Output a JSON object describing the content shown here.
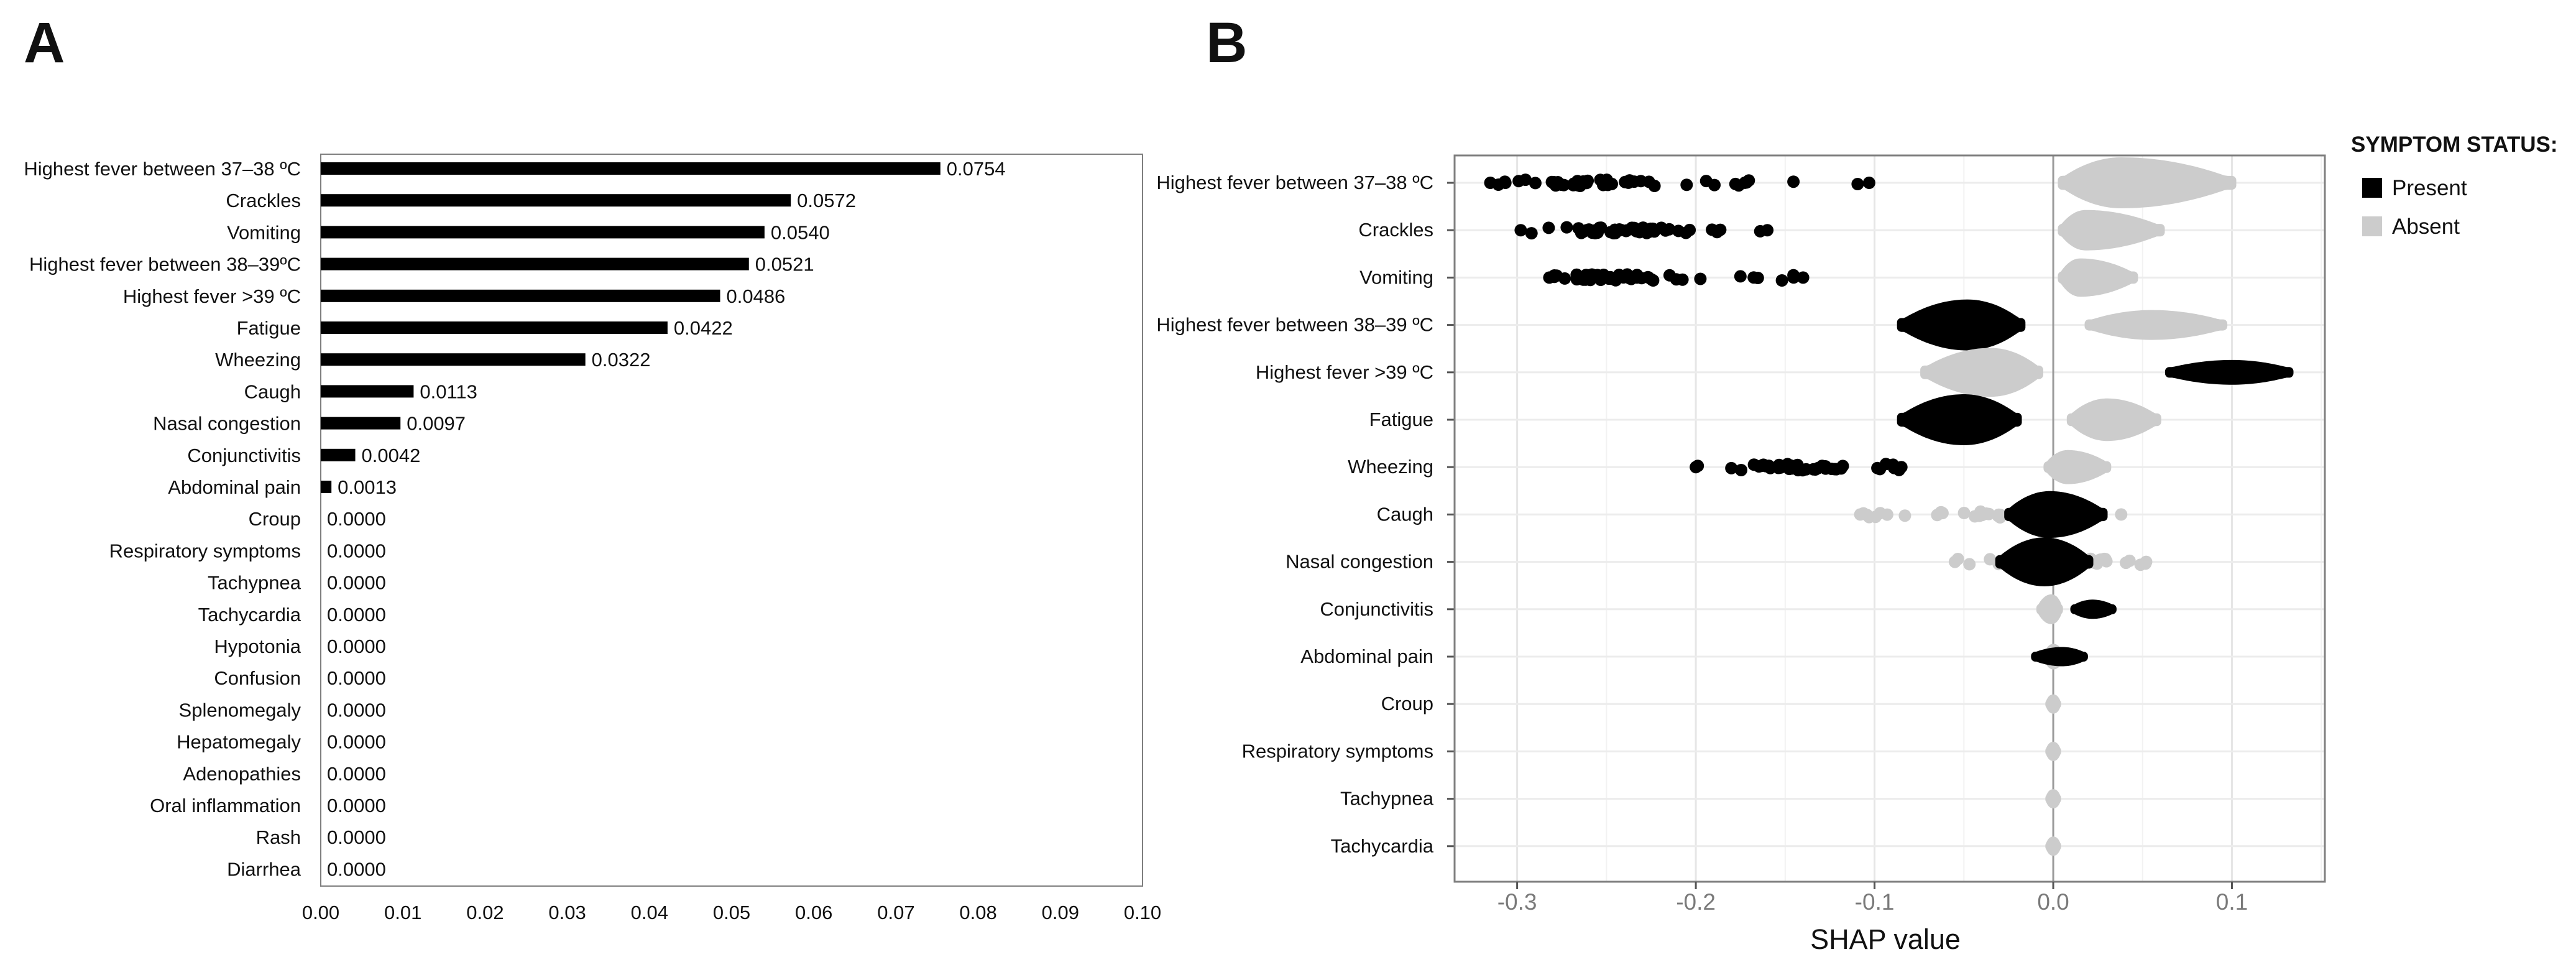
{
  "chart_data": [
    {
      "panel": "A",
      "type": "bar",
      "orientation": "horizontal",
      "categories": [
        "Highest fever between 37–38 ºC",
        "Crackles",
        "Vomiting",
        "Highest fever between 38–39ºC",
        "Highest fever >39 ºC",
        "Fatigue",
        "Wheezing",
        "Caugh",
        "Nasal congestion",
        "Conjunctivitis",
        "Abdominal pain",
        "Croup",
        "Respiratory symptoms",
        "Tachypnea",
        "Tachycardia",
        "Hypotonia",
        "Confusion",
        "Splenomegaly",
        "Hepatomegaly",
        "Adenopathies",
        "Oral inflammation",
        "Rash",
        "Diarrhea"
      ],
      "values": [
        0.0754,
        0.0572,
        0.054,
        0.0521,
        0.0486,
        0.0422,
        0.0322,
        0.0113,
        0.0097,
        0.0042,
        0.0013,
        0,
        0,
        0,
        0,
        0,
        0,
        0,
        0,
        0,
        0,
        0,
        0
      ],
      "value_labels": [
        "0.0754",
        "0.0572",
        "0.0540",
        "0.0521",
        "0.0486",
        "0.0422",
        "0.0322",
        "0.0113",
        "0.0097",
        "0.0042",
        "0.0013",
        "0.0000",
        "0.0000",
        "0.0000",
        "0.0000",
        "0.0000",
        "0.0000",
        "0.0000",
        "0.0000",
        "0.0000",
        "0.0000",
        "0.0000",
        "0.0000"
      ],
      "xlim": [
        0,
        0.1
      ],
      "xticks": [
        0,
        0.01,
        0.02,
        0.03,
        0.04,
        0.05,
        0.06,
        0.07,
        0.08,
        0.09,
        0.1
      ],
      "xtick_labels": [
        "0.00",
        "0.01",
        "0.02",
        "0.03",
        "0.04",
        "0.05",
        "0.06",
        "0.07",
        "0.08",
        "0.09",
        "0.10"
      ],
      "color": "#000000"
    },
    {
      "panel": "B",
      "type": "scatter",
      "subtype": "beeswarm",
      "categories": [
        "Highest fever between 37–38 ºC",
        "Crackles",
        "Vomiting",
        "Highest fever between 38–39 ºC",
        "Highest fever >39 ºC",
        "Fatigue",
        "Wheezing",
        "Caugh",
        "Nasal congestion",
        "Conjunctivitis",
        "Abdominal pain",
        "Croup",
        "Respiratory symptoms",
        "Tachypnea",
        "Tachycardia"
      ],
      "xlabel": "SHAP value",
      "xlim": [
        -0.335,
        0.152
      ],
      "xticks": [
        -0.3,
        -0.2,
        -0.1,
        0.0,
        0.1
      ],
      "xtick_labels": [
        "-0.3",
        "-0.2",
        "-0.1",
        "0.0",
        "0.1"
      ],
      "legend": {
        "title": "SYMPTOM STATUS:",
        "entries": [
          {
            "label": "Present",
            "color": "#000000"
          },
          {
            "label": "Absent",
            "color": "#cccccc"
          }
        ],
        "position": "right"
      },
      "series": [
        {
          "name": "Present",
          "color": "#000000"
        },
        {
          "name": "Absent",
          "color": "#cccccc"
        }
      ],
      "distributions": [
        {
          "present": {
            "type": "scatter",
            "min": -0.315,
            "max": -0.103,
            "peak": -0.27
          },
          "absent": {
            "type": "violin",
            "min": 0.005,
            "max": 0.1,
            "peak": 0.038,
            "width": 1.0
          }
        },
        {
          "present": {
            "type": "scatter",
            "min": -0.298,
            "max": -0.16,
            "peak": -0.24
          },
          "absent": {
            "type": "violin",
            "min": 0.005,
            "max": 0.06,
            "peak": 0.018,
            "width": 0.75
          }
        },
        {
          "present": {
            "type": "scatter",
            "min": -0.282,
            "max": -0.14,
            "peak": -0.245
          },
          "absent": {
            "type": "violin",
            "min": 0.005,
            "max": 0.045,
            "peak": 0.015,
            "width": 0.7
          }
        },
        {
          "present": {
            "type": "violin",
            "min": -0.085,
            "max": -0.018,
            "peak": -0.048,
            "width": 1.0
          },
          "absent": {
            "type": "violin",
            "min": 0.02,
            "max": 0.095,
            "peak": 0.055,
            "width": 0.5
          }
        },
        {
          "present": {
            "type": "violin",
            "min": 0.065,
            "max": 0.132,
            "peak": 0.1,
            "width": 0.38
          },
          "absent": {
            "type": "violin",
            "min": -0.072,
            "max": -0.008,
            "peak": -0.035,
            "width": 0.95
          }
        },
        {
          "present": {
            "type": "violin",
            "min": -0.085,
            "max": -0.02,
            "peak": -0.05,
            "width": 1.0
          },
          "absent": {
            "type": "violin",
            "min": 0.01,
            "max": 0.058,
            "peak": 0.03,
            "width": 0.8
          }
        },
        {
          "present": {
            "type": "scatter",
            "min": -0.2,
            "max": -0.085,
            "peak": -0.145
          },
          "absent": {
            "type": "violin",
            "min": -0.003,
            "max": 0.03,
            "peak": 0.008,
            "width": 0.6
          }
        },
        {
          "present": {
            "type": "violin",
            "min": -0.025,
            "max": 0.028,
            "peak": -0.002,
            "width": 0.9
          },
          "absent": {
            "type": "scatter",
            "min": -0.108,
            "max": 0.038,
            "peak": -0.02
          }
        },
        {
          "present": {
            "type": "violin",
            "min": -0.03,
            "max": 0.02,
            "peak": -0.005,
            "width": 0.95
          },
          "absent": {
            "type": "scatter",
            "min": -0.055,
            "max": 0.052,
            "peak": 0.01
          }
        },
        {
          "present": {
            "type": "violin",
            "min": 0.012,
            "max": 0.033,
            "peak": 0.022,
            "width": 0.25
          },
          "absent": {
            "type": "violin",
            "min": -0.007,
            "max": 0.003,
            "peak": -0.001,
            "width": 0.5
          }
        },
        {
          "present": {
            "type": "violin",
            "min": -0.01,
            "max": 0.017,
            "peak": 0.005,
            "width": 0.25
          },
          "absent": {
            "type": "violin",
            "min": -0.003,
            "max": 0.004,
            "peak": 0.0,
            "width": 0.4
          }
        },
        {
          "present": {
            "type": "none"
          },
          "absent": {
            "type": "violin",
            "min": -0.002,
            "max": 0.002,
            "peak": 0.0,
            "width": 0.25
          }
        },
        {
          "present": {
            "type": "none"
          },
          "absent": {
            "type": "violin",
            "min": -0.002,
            "max": 0.002,
            "peak": 0.0,
            "width": 0.25
          }
        },
        {
          "present": {
            "type": "none"
          },
          "absent": {
            "type": "violin",
            "min": -0.002,
            "max": 0.002,
            "peak": 0.0,
            "width": 0.25
          }
        },
        {
          "present": {
            "type": "none"
          },
          "absent": {
            "type": "violin",
            "min": -0.002,
            "max": 0.002,
            "peak": 0.0,
            "width": 0.25
          }
        }
      ]
    }
  ],
  "panels": {
    "a_letter": "A",
    "b_letter": "B"
  }
}
